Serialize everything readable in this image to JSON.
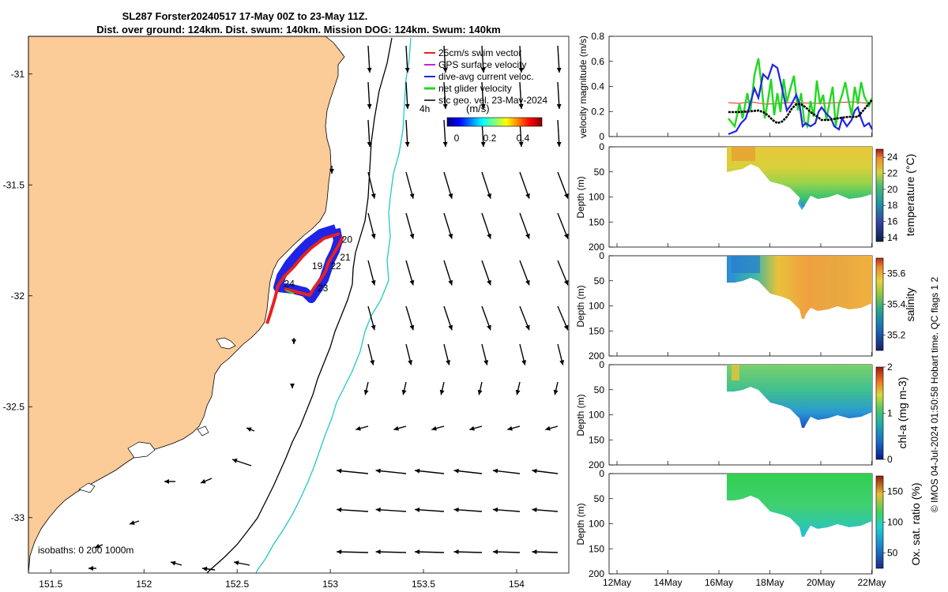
{
  "title_line1": "SL287 Forster20240517 17-May 00Z to 23-May 11Z.",
  "title_line2": "Dist. over ground: 124km. Dist. swum: 140km. Mission DOG: 124km. Swum: 140km",
  "map": {
    "x_ticks": [
      "151.5",
      "152",
      "152.5",
      "153",
      "153.5",
      "154"
    ],
    "y_ticks": [
      "-31",
      "-31.5",
      "-32",
      "-32.5",
      "-33"
    ],
    "xlim": [
      151.38,
      154.28
    ],
    "ylim": [
      -33.25,
      -30.83
    ],
    "legend": [
      {
        "label": "25cm/s swim vector",
        "color": "#e8221c"
      },
      {
        "label": "GPS surface velocity",
        "color": "#d020d0"
      },
      {
        "label": "dive-avg current veloc.",
        "color": "#1f24e6"
      },
      {
        "label": "net glider velocity",
        "color": "#22d822"
      },
      {
        "label": "sfc geo. vel. 23-May-2024",
        "color": "#000000"
      }
    ],
    "time_label": "4h",
    "colorbar_title": "(m/s)",
    "colorbar_ticks": [
      "0",
      "0.2",
      "0.4"
    ],
    "day_labels": [
      {
        "text": "20",
        "lon": 153.09,
        "lat": -31.76
      },
      {
        "text": "21",
        "lon": 153.08,
        "lat": -31.84
      },
      {
        "text": "19",
        "lon": 152.93,
        "lat": -31.88
      },
      {
        "text": "22",
        "lon": 153.03,
        "lat": -31.88
      },
      {
        "text": "24",
        "lon": 152.78,
        "lat": -31.96
      },
      {
        "text": "23",
        "lon": 152.96,
        "lat": -31.98
      }
    ],
    "isobaths_label": "isobaths: 0   200  1000m",
    "land_color": "#fbcb98"
  },
  "right_panels": {
    "x_ticks": [
      "12May",
      "14May",
      "16May",
      "18May",
      "20May",
      "22May"
    ],
    "velocity": {
      "ylabel": "velocity magnitude (m/s)",
      "y_ticks": [
        "0",
        "0.2",
        "0.4",
        "0.6",
        "0.8"
      ],
      "ylim": [
        0,
        0.8
      ]
    },
    "depth_ylabel": "Depth (m)",
    "depth_ticks": [
      "0",
      "50",
      "100",
      "150",
      "200"
    ],
    "temperature": {
      "cbar_label": "temperature (°C)",
      "cbar_ticks": [
        "14",
        "16",
        "18",
        "20",
        "22",
        "24"
      ]
    },
    "salinity": {
      "cbar_label": "salinity",
      "cbar_ticks": [
        "35.2",
        "35.4",
        "35.6"
      ]
    },
    "chla": {
      "cbar_label": "chl-a (mg m-3)",
      "cbar_ticks": [
        "0",
        "1",
        "2"
      ]
    },
    "oxygen": {
      "cbar_label": "Ox. sat. ratio (%)",
      "cbar_ticks": [
        "50",
        "100",
        "150"
      ]
    }
  },
  "footer": "© IMOS 04-Jul-2024 01:50:58 Hobart time. QC flags 1  2"
}
